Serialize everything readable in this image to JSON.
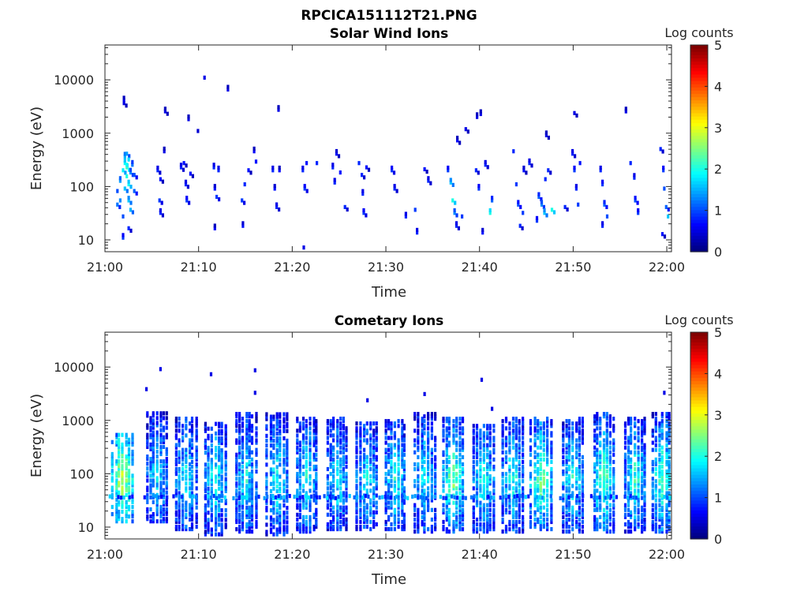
{
  "figure_title": "RPCICA151112T21.PNG",
  "chart_data": [
    {
      "type": "heatmap",
      "title": "Solar Wind Ions",
      "xlabel": "Time",
      "ylabel": "Energy (eV)",
      "x_ticks": [
        "21:00",
        "21:10",
        "21:20",
        "21:30",
        "21:40",
        "21:50",
        "22:00"
      ],
      "x_range_minutes": [
        0,
        60.5
      ],
      "y_scale": "log",
      "y_ticks": [
        "10",
        "100",
        "1000",
        "10000"
      ],
      "ylim": [
        6,
        45000
      ],
      "colorbar": {
        "label": "Log counts",
        "ticks": [
          "0",
          "1",
          "2",
          "3",
          "4",
          "5"
        ],
        "range": [
          0,
          5
        ],
        "colormap": "jet"
      },
      "cells": [
        [
          1.2,
          50,
          1.2
        ],
        [
          1.2,
          90,
          1.0
        ],
        [
          1.5,
          60,
          1.3
        ],
        [
          1.5,
          140,
          1.4
        ],
        [
          1.8,
          30,
          1.0
        ],
        [
          1.8,
          220,
          1.8
        ],
        [
          2.0,
          100,
          1.6
        ],
        [
          2.0,
          300,
          1.9
        ],
        [
          2.0,
          400,
          1.5
        ],
        [
          2.2,
          170,
          2.0
        ],
        [
          2.2,
          250,
          2.2
        ],
        [
          2.2,
          450,
          1.4
        ],
        [
          2.4,
          60,
          1.6
        ],
        [
          2.4,
          350,
          1.7
        ],
        [
          2.4,
          120,
          1.9
        ],
        [
          2.6,
          40,
          1.5
        ],
        [
          2.6,
          200,
          1.3
        ],
        [
          2.8,
          280,
          1.2
        ],
        [
          3.0,
          90,
          1.1
        ],
        [
          3.0,
          180,
          1.0
        ],
        [
          1.8,
          12,
          0.9
        ],
        [
          2.4,
          18,
          0.8
        ],
        [
          1.9,
          4500,
          0.6
        ],
        [
          1.9,
          4000,
          0.5
        ],
        [
          5.5,
          220,
          0.8
        ],
        [
          5.8,
          150,
          0.7
        ],
        [
          5.7,
          60,
          0.9
        ],
        [
          5.8,
          35,
          0.8
        ],
        [
          6.2,
          500,
          0.5
        ],
        [
          6.3,
          2800,
          0.5
        ],
        [
          8.0,
          250,
          0.8
        ],
        [
          8.3,
          300,
          0.7
        ],
        [
          8.5,
          120,
          0.8
        ],
        [
          8.6,
          60,
          0.9
        ],
        [
          9.0,
          190,
          0.7
        ],
        [
          8.8,
          2000,
          0.5
        ],
        [
          9.8,
          1200,
          0.4
        ],
        [
          11.5,
          250,
          0.8
        ],
        [
          11.6,
          100,
          0.7
        ],
        [
          11.8,
          70,
          0.9
        ],
        [
          11.6,
          18,
          0.6
        ],
        [
          12.0,
          220,
          0.8
        ],
        [
          10.5,
          12000,
          0.5
        ],
        [
          13.0,
          7200,
          0.5
        ],
        [
          14.5,
          60,
          0.9
        ],
        [
          14.8,
          120,
          0.8
        ],
        [
          14.6,
          20,
          0.7
        ],
        [
          15.2,
          220,
          0.7
        ],
        [
          15.8,
          500,
          0.6
        ],
        [
          16.0,
          320,
          0.7
        ],
        [
          17.8,
          220,
          0.8
        ],
        [
          18.0,
          100,
          0.7
        ],
        [
          18.2,
          45,
          0.8
        ],
        [
          18.4,
          3000,
          0.5
        ],
        [
          18.5,
          220,
          0.6
        ],
        [
          21.0,
          220,
          0.8
        ],
        [
          21.2,
          100,
          0.9
        ],
        [
          21.1,
          7,
          0.8
        ],
        [
          21.4,
          300,
          0.7
        ],
        [
          22.5,
          300,
          0.8
        ],
        [
          24.2,
          250,
          0.8
        ],
        [
          24.6,
          450,
          0.7
        ],
        [
          24.4,
          130,
          0.8
        ],
        [
          25.0,
          200,
          0.7
        ],
        [
          25.5,
          45,
          0.8
        ],
        [
          27.0,
          300,
          0.8
        ],
        [
          27.3,
          180,
          0.8
        ],
        [
          27.5,
          35,
          0.9
        ],
        [
          27.8,
          250,
          0.7
        ],
        [
          27.4,
          80,
          0.8
        ],
        [
          30.5,
          220,
          0.9
        ],
        [
          30.8,
          100,
          0.8
        ],
        [
          32.0,
          30,
          0.8
        ],
        [
          33.0,
          40,
          0.9
        ],
        [
          33.2,
          15,
          0.8
        ],
        [
          34.0,
          230,
          0.7
        ],
        [
          34.4,
          140,
          0.8
        ],
        [
          36.5,
          220,
          0.9
        ],
        [
          36.8,
          130,
          1.6
        ],
        [
          37.0,
          60,
          2.0
        ],
        [
          37.2,
          35,
          1.3
        ],
        [
          37.4,
          20,
          0.8
        ],
        [
          38.0,
          30,
          0.9
        ],
        [
          38.4,
          1300,
          0.5
        ],
        [
          37.5,
          800,
          0.6
        ],
        [
          39.5,
          220,
          0.8
        ],
        [
          39.8,
          100,
          0.9
        ],
        [
          40.2,
          15,
          0.7
        ],
        [
          40.5,
          280,
          0.8
        ],
        [
          41.0,
          35,
          2.0
        ],
        [
          41.2,
          60,
          1.1
        ],
        [
          39.6,
          2200,
          0.5
        ],
        [
          40.0,
          2500,
          0.5
        ],
        [
          43.5,
          500,
          0.8
        ],
        [
          43.8,
          120,
          0.9
        ],
        [
          44.0,
          50,
          1.0
        ],
        [
          44.2,
          20,
          0.8
        ],
        [
          44.6,
          220,
          0.7
        ],
        [
          45.2,
          300,
          0.8
        ],
        [
          44.5,
          35,
          0.9
        ],
        [
          46.2,
          70,
          1.1
        ],
        [
          46.5,
          50,
          1.3
        ],
        [
          46.8,
          35,
          1.6
        ],
        [
          46.9,
          150,
          0.8
        ],
        [
          47.2,
          220,
          0.8
        ],
        [
          47.6,
          40,
          2.0
        ],
        [
          47.0,
          1000,
          0.5
        ],
        [
          46.0,
          25,
          0.9
        ],
        [
          49.0,
          45,
          0.8
        ],
        [
          49.8,
          450,
          0.8
        ],
        [
          50.0,
          220,
          0.9
        ],
        [
          50.2,
          100,
          0.8
        ],
        [
          50.4,
          50,
          0.9
        ],
        [
          50.0,
          2600,
          0.5
        ],
        [
          50.6,
          300,
          0.7
        ],
        [
          52.8,
          220,
          0.8
        ],
        [
          53.0,
          120,
          0.9
        ],
        [
          53.2,
          50,
          1.1
        ],
        [
          53.5,
          30,
          1.0
        ],
        [
          53.0,
          20,
          0.8
        ],
        [
          55.5,
          2800,
          0.5
        ],
        [
          56.0,
          300,
          0.8
        ],
        [
          56.4,
          160,
          0.8
        ],
        [
          56.5,
          60,
          1.0
        ],
        [
          56.8,
          35,
          0.9
        ],
        [
          59.2,
          550,
          0.8
        ],
        [
          59.5,
          220,
          0.9
        ],
        [
          59.6,
          100,
          1.0
        ],
        [
          59.8,
          45,
          1.1
        ],
        [
          60.0,
          30,
          1.6
        ],
        [
          59.4,
          14,
          0.7
        ]
      ]
    },
    {
      "type": "heatmap",
      "title": "Cometary Ions",
      "xlabel": "Time",
      "ylabel": "Energy (eV)",
      "x_ticks": [
        "21:00",
        "21:10",
        "21:20",
        "21:30",
        "21:40",
        "21:50",
        "22:00"
      ],
      "x_range_minutes": [
        0,
        60.5
      ],
      "y_scale": "log",
      "y_ticks": [
        "10",
        "100",
        "1000",
        "10000"
      ],
      "ylim": [
        6,
        45000
      ],
      "colorbar": {
        "label": "Log counts",
        "ticks": [
          "0",
          "1",
          "2",
          "3",
          "4",
          "5"
        ],
        "range": [
          0,
          5
        ],
        "colormap": "jet"
      },
      "columns": [
        {
          "t": 1.9,
          "peak": 2.9,
          "top": 600,
          "bottom": 14
        },
        {
          "t": 5.6,
          "peak": 1.8,
          "top": 1500,
          "bottom": 14
        },
        {
          "t": 8.7,
          "peak": 1.9,
          "top": 1200,
          "bottom": 10
        },
        {
          "t": 11.8,
          "peak": 2.0,
          "top": 1000,
          "bottom": 8
        },
        {
          "t": 15.1,
          "peak": 1.9,
          "top": 1500,
          "bottom": 9
        },
        {
          "t": 18.4,
          "peak": 2.0,
          "top": 1500,
          "bottom": 8
        },
        {
          "t": 21.6,
          "peak": 2.0,
          "top": 1200,
          "bottom": 9
        },
        {
          "t": 24.8,
          "peak": 1.9,
          "top": 1300,
          "bottom": 10
        },
        {
          "t": 28.0,
          "peak": 1.9,
          "top": 1000,
          "bottom": 10
        },
        {
          "t": 31.0,
          "peak": 2.0,
          "top": 1100,
          "bottom": 10
        },
        {
          "t": 34.2,
          "peak": 1.9,
          "top": 1500,
          "bottom": 9
        },
        {
          "t": 37.2,
          "peak": 2.5,
          "top": 1200,
          "bottom": 9
        },
        {
          "t": 40.5,
          "peak": 2.0,
          "top": 900,
          "bottom": 9
        },
        {
          "t": 43.6,
          "peak": 2.0,
          "top": 1300,
          "bottom": 9
        },
        {
          "t": 46.6,
          "peak": 2.5,
          "top": 1300,
          "bottom": 10
        },
        {
          "t": 50.0,
          "peak": 2.0,
          "top": 1300,
          "bottom": 9
        },
        {
          "t": 53.3,
          "peak": 2.4,
          "top": 1500,
          "bottom": 9
        },
        {
          "t": 56.6,
          "peak": 2.1,
          "top": 1300,
          "bottom": 9
        },
        {
          "t": 59.6,
          "peak": 2.3,
          "top": 1500,
          "bottom": 9
        }
      ],
      "band_energy_eV": 40,
      "sparse_points": [
        [
          4.3,
          4200
        ],
        [
          5.8,
          10000
        ],
        [
          11.2,
          8000
        ],
        [
          15.9,
          9500
        ],
        [
          15.9,
          3600
        ],
        [
          27.9,
          2600
        ],
        [
          34.0,
          3400
        ],
        [
          40.1,
          6300
        ],
        [
          41.2,
          1800
        ],
        [
          59.6,
          3600
        ]
      ]
    }
  ]
}
